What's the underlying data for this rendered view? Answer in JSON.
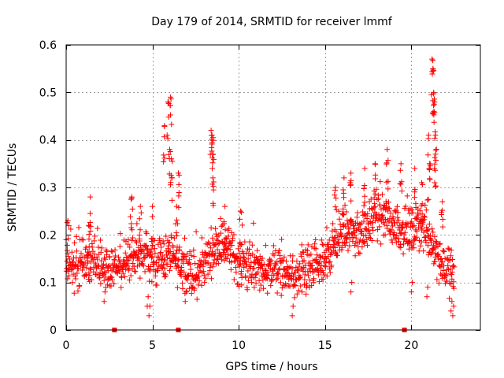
{
  "chart_data": {
    "type": "scatter",
    "title": "Day 179 of 2014, SRMTID for receiver lmmf",
    "xlabel": "GPS time / hours",
    "ylabel": "SRMTID / TECUs",
    "xlim": [
      0,
      24
    ],
    "ylim": [
      0,
      0.6
    ],
    "xticks": [
      0,
      5,
      10,
      15,
      20
    ],
    "yticks": [
      0,
      0.1,
      0.2,
      0.3,
      0.4,
      0.5,
      0.6
    ],
    "ytick_labels": [
      "0",
      "0.1",
      "0.2",
      "0.3",
      "0.4",
      "0.5",
      "0.6"
    ],
    "grid": true,
    "marker": "+",
    "series": [
      {
        "name": "SRMTID",
        "color": "#ff0000",
        "sample_interval_hours": 0.05,
        "baseline_profile": {
          "x": [
            0,
            0.5,
            1,
            1.5,
            2,
            2.5,
            3,
            3.5,
            4,
            4.5,
            5,
            5.5,
            6,
            6.5,
            7,
            7.5,
            8,
            8.5,
            9,
            9.5,
            10,
            10.5,
            11,
            11.5,
            12,
            12.5,
            13,
            13.5,
            14,
            14.5,
            15,
            15.5,
            16,
            16.5,
            17,
            17.5,
            18,
            18.5,
            19,
            19.5,
            20,
            20.5,
            21,
            21.5,
            22,
            22.5
          ],
          "y": [
            0.14,
            0.13,
            0.14,
            0.15,
            0.13,
            0.12,
            0.13,
            0.14,
            0.15,
            0.16,
            0.14,
            0.15,
            0.16,
            0.14,
            0.13,
            0.11,
            0.14,
            0.17,
            0.18,
            0.17,
            0.14,
            0.13,
            0.13,
            0.12,
            0.13,
            0.12,
            0.11,
            0.11,
            0.12,
            0.13,
            0.14,
            0.18,
            0.2,
            0.21,
            0.2,
            0.22,
            0.24,
            0.24,
            0.22,
            0.21,
            0.2,
            0.22,
            0.2,
            0.16,
            0.13,
            0.11
          ],
          "spread": 0.055
        },
        "peaks": [
          {
            "x": 0.1,
            "y": 0.23
          },
          {
            "x": 1.4,
            "y": 0.28
          },
          {
            "x": 1.3,
            "y": 0.22
          },
          {
            "x": 3.8,
            "y": 0.28
          },
          {
            "x": 4.3,
            "y": 0.26
          },
          {
            "x": 5.0,
            "y": 0.26
          },
          {
            "x": 5.7,
            "y": 0.43
          },
          {
            "x": 5.9,
            "y": 0.48
          },
          {
            "x": 6.05,
            "y": 0.49
          },
          {
            "x": 6.0,
            "y": 0.38
          },
          {
            "x": 6.1,
            "y": 0.36
          },
          {
            "x": 6.5,
            "y": 0.33
          },
          {
            "x": 6.4,
            "y": 0.26
          },
          {
            "x": 8.4,
            "y": 0.42
          },
          {
            "x": 8.45,
            "y": 0.41
          },
          {
            "x": 8.5,
            "y": 0.37
          },
          {
            "x": 8.5,
            "y": 0.32
          },
          {
            "x": 9.2,
            "y": 0.26
          },
          {
            "x": 10.1,
            "y": 0.25
          },
          {
            "x": 15.6,
            "y": 0.3
          },
          {
            "x": 16.1,
            "y": 0.32
          },
          {
            "x": 16.5,
            "y": 0.33
          },
          {
            "x": 17.3,
            "y": 0.34
          },
          {
            "x": 17.9,
            "y": 0.35
          },
          {
            "x": 18.6,
            "y": 0.38
          },
          {
            "x": 19.4,
            "y": 0.35
          },
          {
            "x": 20.2,
            "y": 0.34
          },
          {
            "x": 20.6,
            "y": 0.31
          },
          {
            "x": 21.0,
            "y": 0.41
          },
          {
            "x": 21.05,
            "y": 0.35
          },
          {
            "x": 21.2,
            "y": 0.57
          },
          {
            "x": 21.25,
            "y": 0.55
          },
          {
            "x": 21.3,
            "y": 0.5
          },
          {
            "x": 21.35,
            "y": 0.48
          },
          {
            "x": 21.4,
            "y": 0.41
          },
          {
            "x": 21.4,
            "y": 0.37
          },
          {
            "x": 21.8,
            "y": 0.27
          }
        ],
        "lows": [
          {
            "x": 2.2,
            "y": 0.06
          },
          {
            "x": 4.7,
            "y": 0.05
          },
          {
            "x": 4.8,
            "y": 0.03
          },
          {
            "x": 6.9,
            "y": 0.06
          },
          {
            "x": 13.1,
            "y": 0.03
          },
          {
            "x": 16.5,
            "y": 0.08
          },
          {
            "x": 20.0,
            "y": 0.08
          },
          {
            "x": 20.9,
            "y": 0.07
          },
          {
            "x": 22.4,
            "y": 0.03
          },
          {
            "x": 22.3,
            "y": 0.04
          }
        ],
        "zeros": [
          2.8,
          6.5,
          19.6
        ]
      }
    ]
  }
}
